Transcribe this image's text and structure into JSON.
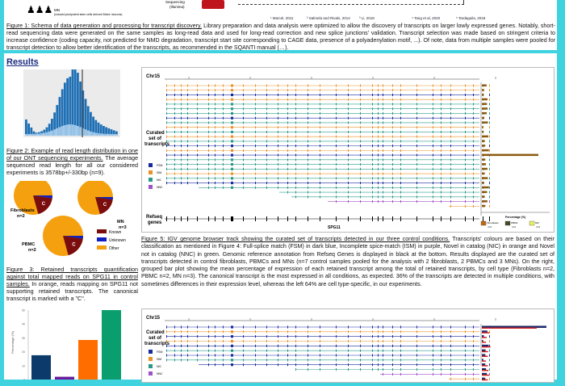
{
  "schema": {
    "mn_label": "MN",
    "mn_sub": "(induced pluripotent stem cells derived Motor neurons)",
    "seq_label": "Sequencing",
    "seq_sub": "(Illumina)",
    "refs": [
      "¹ Marcel, 2011",
      "² Salmela and Rivals, 2014",
      "³ Li, 2018",
      "⁴ Tang et al, 2020",
      "⁵ Tardaguila, 2018"
    ]
  },
  "fig1": {
    "title": "Figure 1: Schema of data generation and processing for transcript discovery.",
    "body": " Library preparation and data analysis were optimized to allow the discovery of transcripts on larger lowly expressed genes. Notably, short-read sequencing data were generated on the same samples as long-read data and used for long-read correction and new splice junctions' validation. Transcript selection was made based on stringent criteria to increase confidence (coding capacity, not predicted for NMD degradation, transcript start site corresponding to CAGE data, presence of a polyadenylation motif, ...). Of note, data from multiple samples were pooled for transcript detection to allow better identification of the transcripts, as recommended in the SQANTI manual ("
  },
  "results_heading": "Results",
  "fig2": {
    "title": "Figure 2: Example of read length distribution in one of our ONT sequencing experiments.",
    "body": " The average sequenced read length for all our considered experiments is 3578bp+/-330bp (n=9)."
  },
  "fig3": {
    "title": "Figure 3: Retained transcripts quantification against total mapped reads on SPG11 in control samples.",
    "body": " In orange, reads mapping on SPG11 not supporting retained transcripts. The canonical transcript is marked with a \"C\".",
    "pies": [
      {
        "label": "Fibroblasts",
        "n": "n=2"
      },
      {
        "label": "MN",
        "n": "n=3"
      },
      {
        "label": "PBMC",
        "n": "n=2"
      }
    ],
    "canonical": "C",
    "legend": [
      "Known",
      "Unknown",
      "Other"
    ],
    "colors": {
      "other": "#f5a00f",
      "known": "#7a0d0d",
      "unknown": "#1020c0"
    }
  },
  "fig4_chart": {
    "type": "bar",
    "ylabel": "Percentage (%)",
    "ylim": [
      0,
      50
    ],
    "yticks": [
      "0",
      "10",
      "20",
      "30",
      "40",
      "50"
    ],
    "values": [
      17.5,
      2,
      28.5,
      50
    ],
    "colors": [
      "#0c3a6b",
      "#6a1b9a",
      "#ff6d00",
      "#0a9e6e"
    ]
  },
  "fig5": {
    "title": "Figure 5: IGV genome browser track showing the curated set of transcripts detected in our three control conditions.",
    "body": " Transcripts' colours are based on their classification as mentioned in Figure 4: Full-splice match (FSM) in dark blue, Incomplete spice-match (ISM) in purple, Novel in catalog (NIC) in orange and Novel not in catalog (NNC) in green. Genomic reference annotation from Refseq Genes is displayed in black at the bottom. Results displayed are the curated set of transcripts detected in control fibroblasts, PBMCs and MNs (n=7 control samples pooled for the analysis with 2 fibroblasts, 2 PBMCs and 3 MNs). On the right, grouped bar plot showing the mean percentage of expression of each retained transcript among the total of retained transcripts, by cell type (Fibroblasts n=2, PBMC n=2, MN n=3). The canonical transcript is the most expressed in all conditions, as expected. 36% of the transcripts are detected in multiple conditions, with sometimes differences in their expression level, whereas the left 64% are cell type-specific, in our experiments."
  },
  "igv": {
    "chr": "Chr15",
    "track_label": "Curated set of transcripts",
    "refseq_label": "Refseq genes",
    "gene": "SPG11",
    "legend": [
      "FSM",
      "ISM",
      "NIC",
      "NNC"
    ],
    "xlabel": "Percentage (%)",
    "bar_legend": [
      {
        "label": "Fibroblasts",
        "n": "n=2"
      },
      {
        "label": "PBMC",
        "n": "n=2"
      },
      {
        "label": "MN",
        "n": "n=3"
      }
    ],
    "class_colors": {
      "b": "#1a2a9a",
      "o": "#e8922a",
      "g": "#2a9a88",
      "p": "#a050c8"
    },
    "rows1": "oobogggbgogogbobgggogbgggpo",
    "rows2": "bobobgbgbgpo"
  }
}
